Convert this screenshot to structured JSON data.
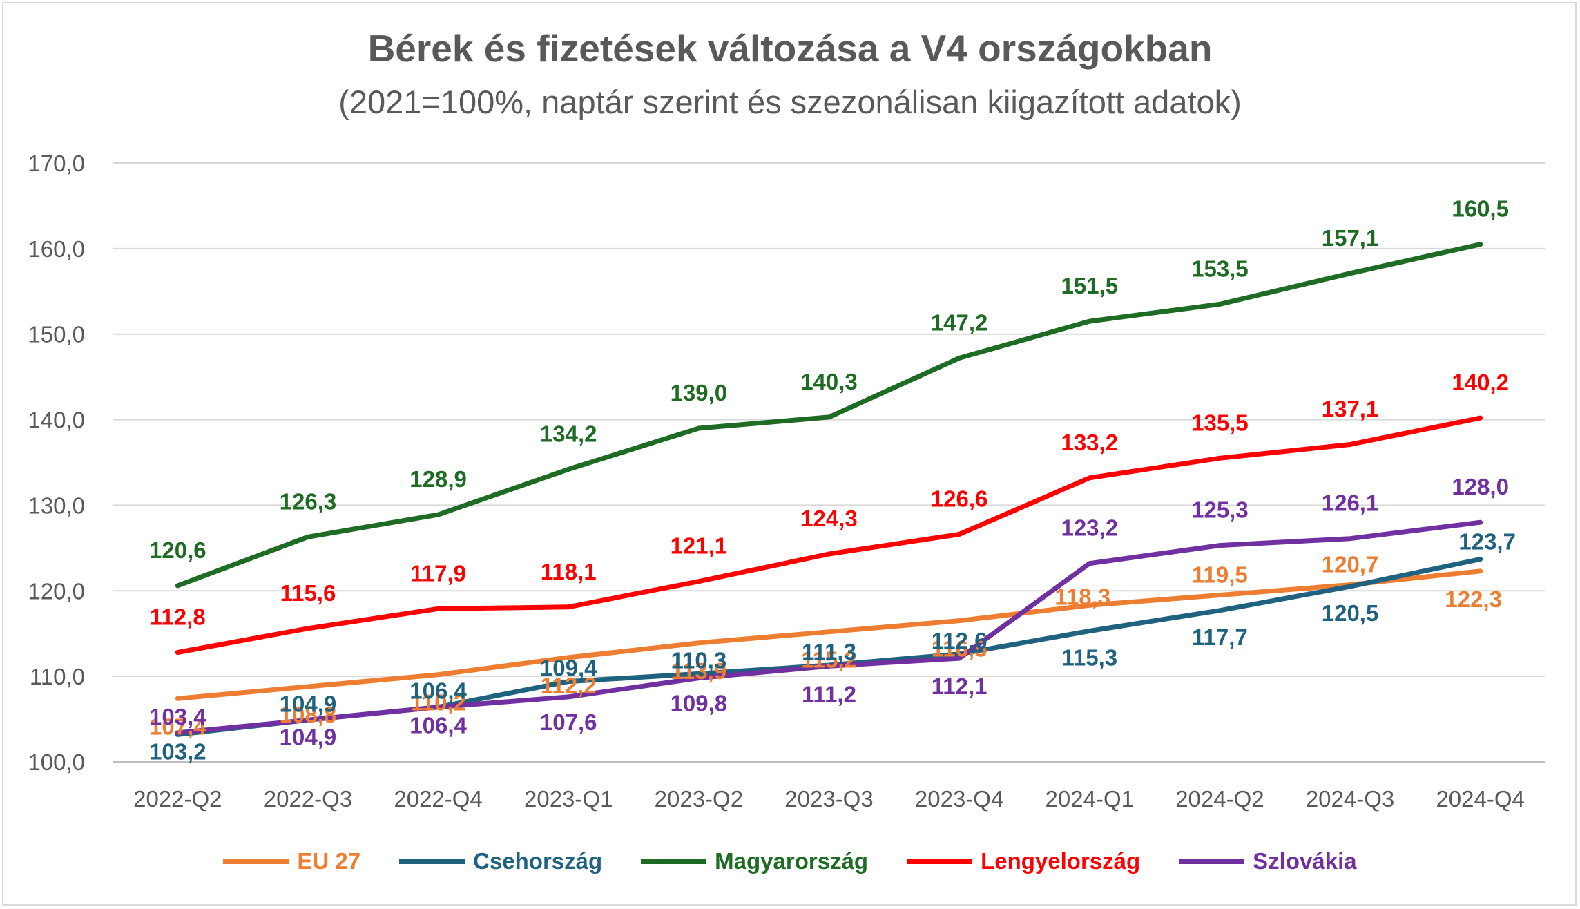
{
  "chart_data": {
    "type": "line",
    "title": "Bérek és fizetések változása a V4 országokban",
    "subtitle": "(2021=100%, naptár szerint és szezonálisan kiigazított adatok)",
    "categories": [
      "2022-Q2",
      "2022-Q3",
      "2022-Q4",
      "2023-Q1",
      "2023-Q2",
      "2023-Q3",
      "2023-Q4",
      "2024-Q1",
      "2024-Q2",
      "2024-Q3",
      "2024-Q4"
    ],
    "ylim": [
      100,
      170
    ],
    "yticks": [
      "100,0",
      "110,0",
      "120,0",
      "130,0",
      "140,0",
      "150,0",
      "160,0",
      "170,0"
    ],
    "grid": true,
    "legend_position": "bottom",
    "series": [
      {
        "name": "EU 27",
        "color": "#ed7d31",
        "values": [
          107.4,
          108.8,
          110.2,
          112.2,
          113.9,
          115.2,
          116.5,
          118.3,
          119.5,
          120.7,
          122.3
        ],
        "labels": [
          "107,4",
          "108,8",
          "110,2",
          "112,2",
          "113,9",
          "115,2",
          "116,5",
          "118,3",
          "119,5",
          "120,7",
          "122,3"
        ]
      },
      {
        "name": "Csehország",
        "color": "#1f6280",
        "values": [
          103.2,
          104.9,
          106.4,
          109.4,
          110.3,
          111.3,
          112.6,
          115.3,
          117.7,
          120.5,
          123.7
        ],
        "labels": [
          "103,2",
          "104,9",
          "106,4",
          "109,4",
          "110,3",
          "111,3",
          "112,6",
          "115,3",
          "117,7",
          "120,5",
          "123,7"
        ]
      },
      {
        "name": "Magyarország",
        "color": "#1e6b24",
        "values": [
          120.6,
          126.3,
          128.9,
          134.2,
          139.0,
          140.3,
          147.2,
          151.5,
          153.5,
          157.1,
          160.5
        ],
        "labels": [
          "120,6",
          "126,3",
          "128,9",
          "134,2",
          "139,0",
          "140,3",
          "147,2",
          "151,5",
          "153,5",
          "157,1",
          "160,5"
        ]
      },
      {
        "name": "Lengyelország",
        "color": "#ff0000",
        "values": [
          112.8,
          115.6,
          117.9,
          118.1,
          121.1,
          124.3,
          126.6,
          133.2,
          135.5,
          137.1,
          140.2
        ],
        "labels": [
          "112,8",
          "115,6",
          "117,9",
          "118,1",
          "121,1",
          "124,3",
          "126,6",
          "133,2",
          "135,5",
          "137,1",
          "140,2"
        ]
      },
      {
        "name": "Szlovákia",
        "color": "#7030a0",
        "values": [
          103.4,
          104.9,
          106.4,
          107.6,
          109.8,
          111.2,
          112.1,
          123.2,
          125.3,
          126.1,
          128.0
        ],
        "labels": [
          "103,4",
          "104,9",
          "106,4",
          "107,6",
          "109,8",
          "111,2",
          "112,1",
          "123,2",
          "125,3",
          "126,1",
          "128,0"
        ]
      }
    ]
  }
}
